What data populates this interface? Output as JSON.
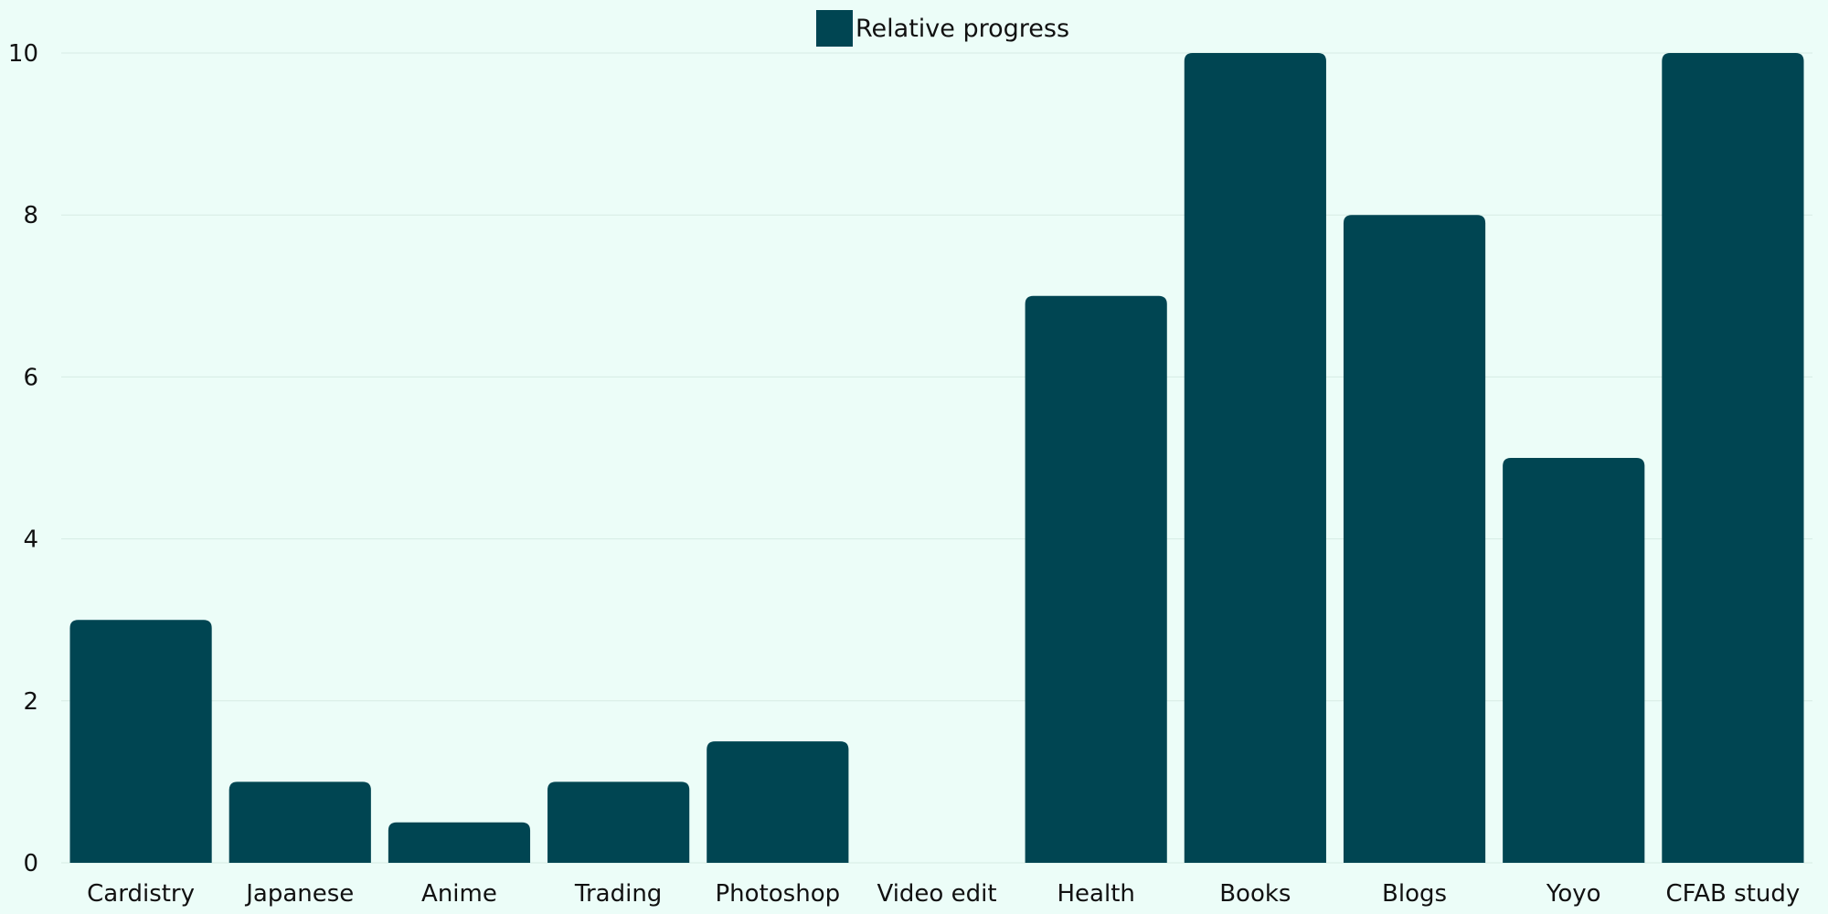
{
  "chart_data": {
    "type": "bar",
    "categories": [
      "Cardistry",
      "Japanese",
      "Anime",
      "Trading",
      "Photoshop",
      "Video edit",
      "Health",
      "Books",
      "Blogs",
      "Yoyo",
      "CFAB study"
    ],
    "series": [
      {
        "name": "Relative progress",
        "values": [
          3,
          1,
          0.5,
          1,
          1.5,
          0,
          7,
          10,
          8,
          5,
          10
        ]
      }
    ],
    "ylim": [
      0,
      10
    ],
    "yticks": [
      0,
      2,
      4,
      6,
      8,
      10
    ],
    "grid": true,
    "legend_position": "top-center",
    "colors": {
      "bar": "#004552",
      "background": "#ecfdf8",
      "grid": "#d6ebe4",
      "text": "#111111"
    }
  }
}
